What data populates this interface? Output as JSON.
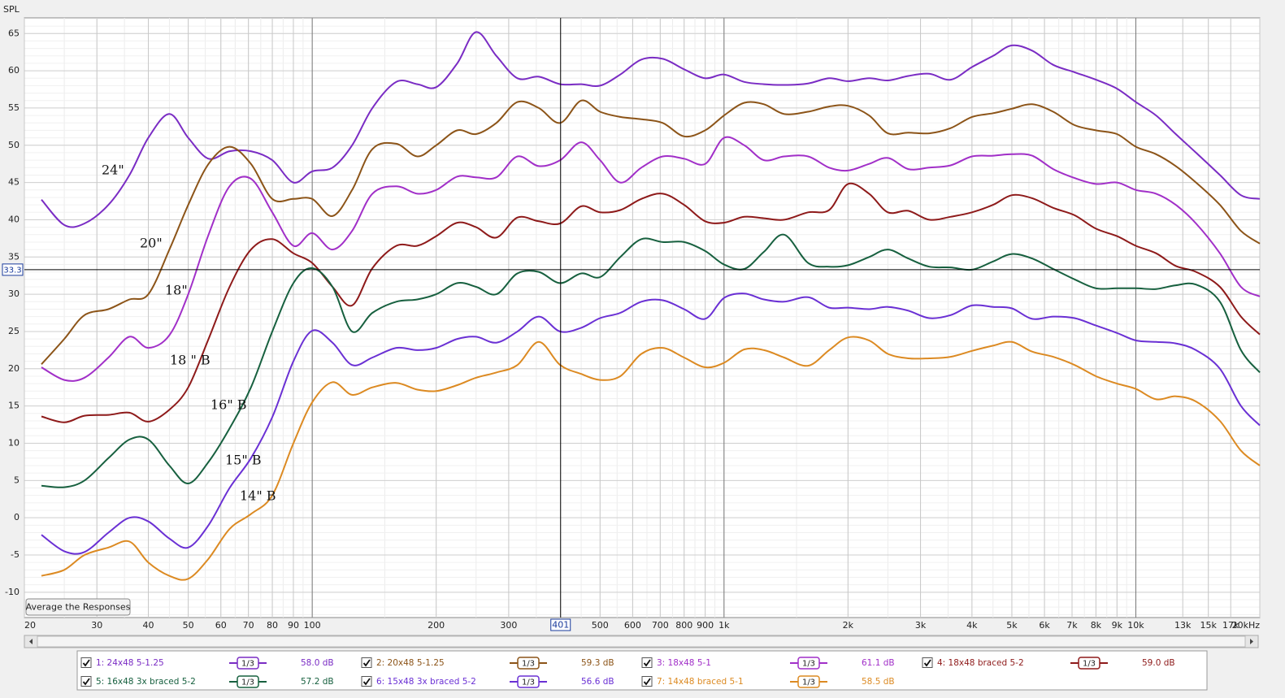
{
  "chart_data": {
    "type": "line",
    "y_label": "SPL",
    "xscale": "log",
    "xlim": [
      20,
      20000
    ],
    "ylim": [
      -13.4,
      67.1
    ],
    "yticks": [
      -10,
      -5,
      0,
      5,
      10,
      15,
      20,
      25,
      30,
      35,
      40,
      45,
      50,
      55,
      60,
      65
    ],
    "xticks": [
      20,
      30,
      40,
      50,
      60,
      70,
      80,
      90,
      100,
      200,
      300,
      500,
      600,
      700,
      800,
      900,
      {
        "value": 1000,
        "label": "1k"
      },
      {
        "value": 2000,
        "label": "2k"
      },
      {
        "value": 3000,
        "label": "3k"
      },
      {
        "value": 4000,
        "label": "4k"
      },
      {
        "value": 5000,
        "label": "5k"
      },
      {
        "value": 6000,
        "label": "6k"
      },
      {
        "value": 7000,
        "label": "7k"
      },
      {
        "value": 8000,
        "label": "8k"
      },
      {
        "value": 9000,
        "label": "9k"
      },
      {
        "value": 10000,
        "label": "10k"
      },
      {
        "value": 13000,
        "label": "13k"
      },
      {
        "value": 15000,
        "label": "15k"
      },
      {
        "value": 17000,
        "label": "17k"
      },
      {
        "value": 20000,
        "label": "20kHz"
      }
    ],
    "grid": true,
    "minor_grid": true,
    "cursor": {
      "x": 401,
      "y": 33.3
    },
    "button": "Average the Responses",
    "annotations": [
      "24\"",
      "20\"",
      "18\"",
      "18 \" B",
      "16\" B",
      "15\" B",
      "14\" B"
    ],
    "x": [
      22,
      25,
      28,
      32,
      36,
      40,
      45,
      50,
      56,
      63,
      71,
      80,
      90,
      100,
      112,
      125,
      140,
      160,
      180,
      200,
      225,
      250,
      280,
      315,
      355,
      400,
      450,
      500,
      560,
      630,
      710,
      800,
      900,
      1000,
      1120,
      1250,
      1400,
      1600,
      1800,
      2000,
      2250,
      2500,
      2800,
      3150,
      3550,
      4000,
      4500,
      5000,
      5600,
      6300,
      7100,
      8000,
      9000,
      10000,
      11200,
      12500,
      14000,
      16000,
      18000,
      20000
    ],
    "series": [
      {
        "name": "1: 24x48 5-1.25",
        "color": "#7a2cc4",
        "smoothing": "1/3",
        "level": "58.0 dB",
        "values": [
          42.7,
          39.3,
          39.5,
          42,
          46,
          51,
          54.2,
          51,
          48.2,
          49.2,
          49.2,
          48,
          45,
          46.5,
          47,
          50,
          55,
          58.5,
          58.2,
          57.8,
          61,
          65.2,
          62,
          59,
          59.2,
          58.2,
          58.2,
          58,
          59.5,
          61.5,
          61.6,
          60.2,
          59,
          59.5,
          58.5,
          58.2,
          58.1,
          58.3,
          59,
          58.6,
          59,
          58.7,
          59.3,
          59.6,
          58.8,
          60.5,
          62,
          63.4,
          62.7,
          60.8,
          59.8,
          58.8,
          57.6,
          55.8,
          54,
          51.5,
          49,
          46,
          43.3,
          42.8
        ]
      },
      {
        "name": "2: 20x48 5-1.25",
        "color": "#8c5418",
        "smoothing": "1/3",
        "level": "59.3 dB",
        "values": [
          20.6,
          24,
          27.2,
          28,
          29.3,
          30,
          36,
          42,
          47.5,
          49.8,
          47.5,
          42.8,
          42.8,
          42.8,
          40.5,
          44,
          49.5,
          50.2,
          48.5,
          50,
          52,
          51.5,
          53,
          55.8,
          55,
          53,
          56,
          54.5,
          53.8,
          53.5,
          53,
          51.2,
          52,
          54,
          55.7,
          55.5,
          54.2,
          54.5,
          55.2,
          55.3,
          54,
          51.6,
          51.7,
          51.6,
          52.3,
          53.8,
          54.3,
          54.9,
          55.5,
          54.5,
          52.7,
          52,
          51.5,
          49.8,
          48.8,
          47.2,
          45,
          42,
          38.5,
          36.8
        ]
      },
      {
        "name": "3: 18x48 5-1",
        "color": "#a12fc8",
        "smoothing": "1/3",
        "level": "61.1 dB",
        "values": [
          20.2,
          18.5,
          18.8,
          21.5,
          24.3,
          22.8,
          24.5,
          30,
          38,
          44.5,
          45.5,
          41,
          36.5,
          38.2,
          36,
          38.5,
          43.5,
          44.5,
          43.5,
          44,
          45.8,
          45.7,
          45.7,
          48.5,
          47.2,
          48,
          50.4,
          48,
          45,
          47,
          48.5,
          48.2,
          47.5,
          51,
          50,
          48,
          48.5,
          48.5,
          47,
          46.6,
          47.5,
          48.3,
          46.8,
          47,
          47.3,
          48.5,
          48.6,
          48.8,
          48.6,
          46.8,
          45.6,
          44.8,
          45,
          44,
          43.5,
          42,
          39.5,
          35.5,
          31,
          29.7
        ]
      },
      {
        "name": "4: 18x48 braced 5-2",
        "color": "#8e1a1a",
        "smoothing": "1/3",
        "level": "59.0 dB",
        "values": [
          13.6,
          12.8,
          13.7,
          13.8,
          14.1,
          12.9,
          14.5,
          17.5,
          24,
          31,
          36,
          37.4,
          35.5,
          34.2,
          31,
          28.5,
          33.5,
          36.5,
          36.5,
          37.8,
          39.6,
          39,
          37.6,
          40.3,
          39.8,
          39.5,
          41.8,
          41,
          41.3,
          42.8,
          43.5,
          42,
          39.8,
          39.6,
          40.4,
          40.2,
          40,
          41,
          41.3,
          44.8,
          43.5,
          41,
          41.2,
          40,
          40.4,
          41,
          42,
          43.3,
          42.9,
          41.6,
          40.6,
          38.8,
          37.8,
          36.5,
          35.5,
          33.8,
          33,
          31,
          27,
          24.6
        ]
      },
      {
        "name": "5: 16x48 3x braced 5-2",
        "color": "#17603f",
        "smoothing": "1/3",
        "level": "57.2 dB",
        "values": [
          4.3,
          4.1,
          5,
          8,
          10.5,
          10.5,
          7,
          4.6,
          7.5,
          12,
          17.5,
          25,
          31.5,
          33.5,
          31,
          25,
          27.5,
          29,
          29.3,
          30,
          31.5,
          31,
          30,
          32.8,
          33,
          31.5,
          32.8,
          32.3,
          35,
          37.4,
          37,
          37,
          35.8,
          34,
          33.4,
          35.7,
          38,
          34.2,
          33.7,
          33.9,
          35,
          36,
          34.8,
          33.7,
          33.6,
          33.3,
          34.4,
          35.4,
          34.8,
          33.4,
          32,
          30.8,
          30.8,
          30.8,
          30.7,
          31.2,
          31.3,
          29,
          22.5,
          19.5
        ]
      },
      {
        "name": "6: 15x48 3x braced 5-2",
        "color": "#6a30d4",
        "smoothing": "1/3",
        "level": "56.6 dB",
        "values": [
          -2.3,
          -4.5,
          -4.6,
          -2,
          0,
          -0.5,
          -2.8,
          -4,
          -1,
          4,
          8,
          13.5,
          21,
          25.1,
          23.5,
          20.5,
          21.5,
          22.8,
          22.5,
          22.8,
          24,
          24.3,
          23.5,
          25,
          27,
          25,
          25.5,
          26.8,
          27.5,
          29,
          29.2,
          28,
          26.7,
          29.5,
          30.1,
          29.3,
          29,
          29.6,
          28.2,
          28.2,
          28,
          28.3,
          27.8,
          26.8,
          27.2,
          28.5,
          28.3,
          28.1,
          26.7,
          27,
          26.8,
          25.8,
          24.8,
          23.8,
          23.6,
          23.4,
          22.5,
          20,
          15,
          12.4
        ]
      },
      {
        "name": "7: 14x48 braced 5-1",
        "color": "#dc8a22",
        "smoothing": "1/3",
        "level": "58.5 dB",
        "values": [
          -7.8,
          -7,
          -5,
          -4,
          -3.2,
          -6,
          -7.8,
          -8.2,
          -5.5,
          -1.5,
          0.5,
          3,
          10,
          15.5,
          18.2,
          16.5,
          17.5,
          18.1,
          17.2,
          17,
          17.8,
          18.8,
          19.5,
          20.5,
          23.6,
          20.5,
          19.3,
          18.5,
          19,
          22,
          22.8,
          21.5,
          20.2,
          20.8,
          22.6,
          22.5,
          21.5,
          20.4,
          22.5,
          24.2,
          23.8,
          22,
          21.4,
          21.4,
          21.6,
          22.4,
          23.1,
          23.6,
          22.3,
          21.6,
          20.5,
          19,
          18,
          17.3,
          15.9,
          16.3,
          15.6,
          13,
          9,
          7
        ]
      }
    ]
  }
}
